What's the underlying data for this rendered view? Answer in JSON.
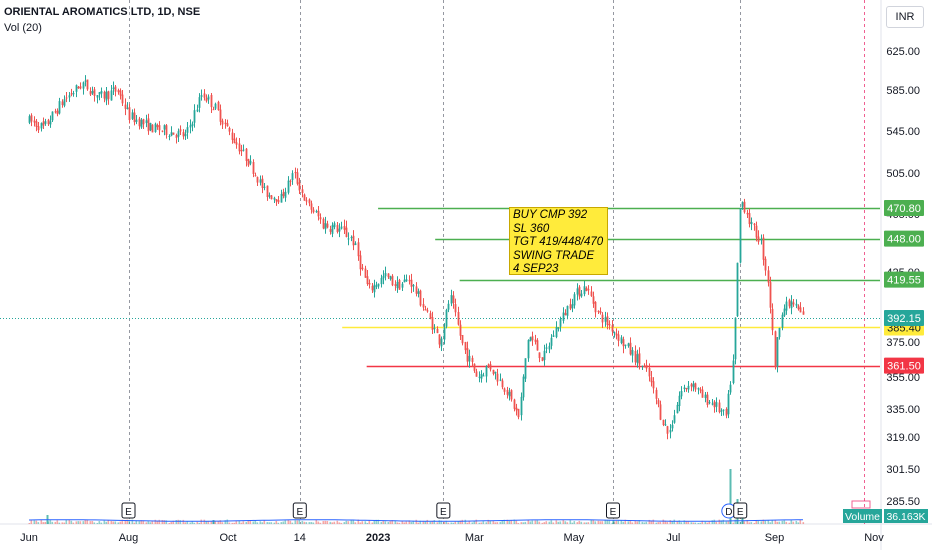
{
  "header": {
    "title": "ORIENTAL AROMATICS LTD, 1D, NSE",
    "volume_label": "Vol (20)"
  },
  "currency_button": "INR",
  "annotation": {
    "text": "BUY CMP 392\nSL 360\nTGT 419/448/470\nSWING TRADE\n4 SEP23"
  },
  "volume_badge": {
    "label": "Volume",
    "value": "36.163K"
  },
  "colors": {
    "up": "#26a69a",
    "down": "#ef5350",
    "target": "#4caf50",
    "stop": "#f23645",
    "entry": "#ffeb3b"
  },
  "chart_data": {
    "type": "candlestick",
    "y_axis": {
      "ticks": [
        {
          "value": 625,
          "label": "625.00"
        },
        {
          "value": 585,
          "label": "585.00"
        },
        {
          "value": 545,
          "label": "545.00"
        },
        {
          "value": 505,
          "label": "505.00"
        },
        {
          "value": 465,
          "label": "465.00"
        },
        {
          "value": 425,
          "label": "425.00"
        },
        {
          "value": 375,
          "label": "375.00"
        },
        {
          "value": 355,
          "label": "355.00"
        },
        {
          "value": 335,
          "label": "335.00"
        },
        {
          "value": 319,
          "label": "319.00"
        },
        {
          "value": 301.5,
          "label": "301.50"
        },
        {
          "value": 285.5,
          "label": "285.50"
        }
      ]
    },
    "x_axis": {
      "labels": [
        {
          "date": "2022-06-01",
          "label": "Jun",
          "bold": false
        },
        {
          "date": "2022-08-01",
          "label": "Aug",
          "bold": false
        },
        {
          "date": "2022-10-01",
          "label": "Oct",
          "bold": false
        },
        {
          "date": "2022-11-14",
          "label": "14",
          "bold": false
        },
        {
          "date": "2023-01-01",
          "label": "2023",
          "bold": true
        },
        {
          "date": "2023-03-01",
          "label": "Mar",
          "bold": false
        },
        {
          "date": "2023-05-01",
          "label": "May",
          "bold": false
        },
        {
          "date": "2023-07-01",
          "label": "Jul",
          "bold": false
        },
        {
          "date": "2023-09-01",
          "label": "Sep",
          "bold": false
        },
        {
          "date": "2023-11-01",
          "label": "Nov",
          "bold": false
        }
      ]
    },
    "levels": [
      {
        "name": "target-3",
        "value": 470.8,
        "label": "470.80",
        "color": "#4caf50",
        "from_date": "2023-01-01"
      },
      {
        "name": "target-2",
        "value": 448.0,
        "label": "448.00",
        "color": "#4caf50",
        "from_date": "2023-02-05"
      },
      {
        "name": "target-1",
        "value": 419.55,
        "label": "419.55",
        "color": "#4caf50",
        "from_date": "2023-02-20"
      },
      {
        "name": "entry",
        "value": 385.4,
        "label": "385.40",
        "color": "#ffeb3b",
        "from_date": "2022-12-10"
      },
      {
        "name": "stop-loss",
        "value": 361.5,
        "label": "361.50",
        "color": "#f23645",
        "from_date": "2022-12-25"
      }
    ],
    "last_price": {
      "value": 392.15,
      "label": "392.15"
    },
    "earnings_markers": [
      {
        "date": "2022-08-01",
        "label": "E"
      },
      {
        "date": "2022-11-14",
        "label": "E"
      },
      {
        "date": "2023-02-10",
        "label": "E"
      },
      {
        "date": "2023-05-25",
        "label": "E"
      },
      {
        "date": "2023-08-04",
        "label": "D"
      },
      {
        "date": "2023-08-11",
        "label": "E"
      }
    ],
    "price_path": [
      [
        "2022-06-01",
        555
      ],
      [
        "2022-06-10",
        548
      ],
      [
        "2022-06-22",
        575
      ],
      [
        "2022-07-04",
        592
      ],
      [
        "2022-07-14",
        578
      ],
      [
        "2022-07-25",
        585
      ],
      [
        "2022-08-01",
        560
      ],
      [
        "2022-08-15",
        548
      ],
      [
        "2022-08-25",
        545
      ],
      [
        "2022-09-05",
        540
      ],
      [
        "2022-09-15",
        582
      ],
      [
        "2022-09-23",
        568
      ],
      [
        "2022-10-03",
        540
      ],
      [
        "2022-10-14",
        515
      ],
      [
        "2022-10-24",
        485
      ],
      [
        "2022-11-02",
        480
      ],
      [
        "2022-11-10",
        505
      ],
      [
        "2022-11-18",
        475
      ],
      [
        "2022-11-28",
        458
      ],
      [
        "2022-12-07",
        455
      ],
      [
        "2022-12-16",
        448
      ],
      [
        "2022-12-26",
        412
      ],
      [
        "2023-01-05",
        422
      ],
      [
        "2023-01-13",
        415
      ],
      [
        "2023-01-20",
        420
      ],
      [
        "2023-01-31",
        395
      ],
      [
        "2023-02-08",
        375
      ],
      [
        "2023-02-14",
        408
      ],
      [
        "2023-02-22",
        372
      ],
      [
        "2023-03-03",
        355
      ],
      [
        "2023-03-10",
        362
      ],
      [
        "2023-03-20",
        348
      ],
      [
        "2023-03-28",
        330
      ],
      [
        "2023-04-03",
        380
      ],
      [
        "2023-04-12",
        365
      ],
      [
        "2023-04-20",
        385
      ],
      [
        "2023-05-01",
        408
      ],
      [
        "2023-05-08",
        415
      ],
      [
        "2023-05-16",
        395
      ],
      [
        "2023-05-24",
        385
      ],
      [
        "2023-06-02",
        372
      ],
      [
        "2023-06-09",
        365
      ],
      [
        "2023-06-16",
        355
      ],
      [
        "2023-06-23",
        332
      ],
      [
        "2023-06-28",
        320
      ],
      [
        "2023-07-05",
        345
      ],
      [
        "2023-07-12",
        352
      ],
      [
        "2023-07-19",
        342
      ],
      [
        "2023-07-26",
        338
      ],
      [
        "2023-08-02",
        330
      ],
      [
        "2023-08-07",
        368
      ],
      [
        "2023-08-11",
        480
      ],
      [
        "2023-08-18",
        455
      ],
      [
        "2023-08-23",
        448
      ],
      [
        "2023-08-28",
        418
      ],
      [
        "2023-09-01",
        362
      ],
      [
        "2023-09-05",
        398
      ],
      [
        "2023-09-12",
        403
      ],
      [
        "2023-09-19",
        392
      ]
    ],
    "volume_spikes": [
      {
        "date": "2022-06-12",
        "value": 9
      },
      {
        "date": "2022-09-22",
        "value": 4
      },
      {
        "date": "2023-05-25",
        "value": 4
      },
      {
        "date": "2023-08-05",
        "value": 55
      },
      {
        "date": "2023-08-09",
        "value": 25
      },
      {
        "date": "2023-08-12",
        "value": 13
      }
    ]
  }
}
